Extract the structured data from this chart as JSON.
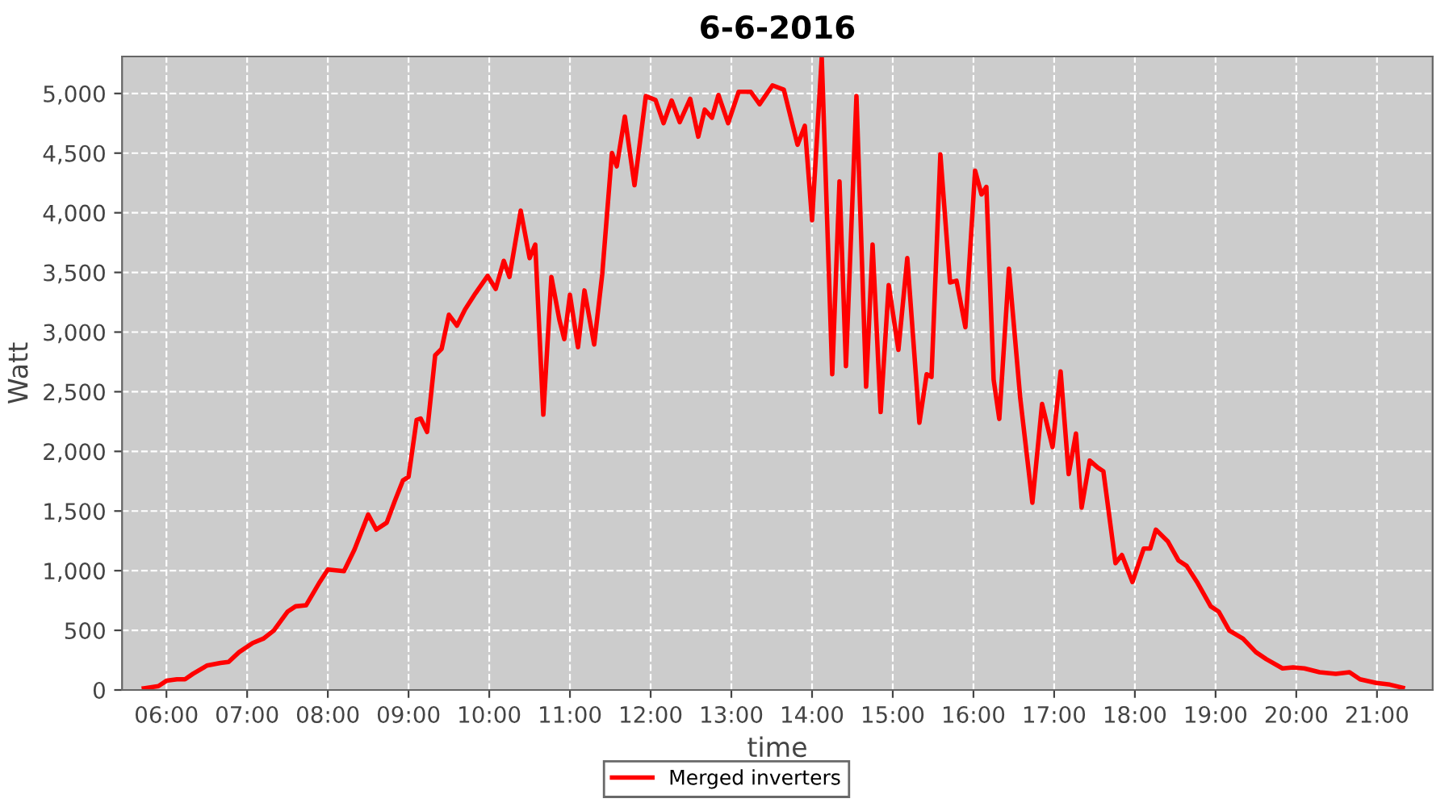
{
  "chart_data": {
    "type": "line",
    "title": "6-6-2016",
    "xlabel": "time",
    "ylabel": "Watt",
    "xlim": [
      5.45,
      21.69
    ],
    "xticks": [
      {
        "value": 6,
        "label": "06:00"
      },
      {
        "value": 7,
        "label": "07:00"
      },
      {
        "value": 8,
        "label": "08:00"
      },
      {
        "value": 9,
        "label": "09:00"
      },
      {
        "value": 10,
        "label": "10:00"
      },
      {
        "value": 11,
        "label": "11:00"
      },
      {
        "value": 12,
        "label": "12:00"
      },
      {
        "value": 13,
        "label": "13:00"
      },
      {
        "value": 14,
        "label": "14:00"
      },
      {
        "value": 15,
        "label": "15:00"
      },
      {
        "value": 16,
        "label": "16:00"
      },
      {
        "value": 17,
        "label": "17:00"
      },
      {
        "value": 18,
        "label": "18:00"
      },
      {
        "value": 19,
        "label": "19:00"
      },
      {
        "value": 20,
        "label": "20:00"
      },
      {
        "value": 21,
        "label": "21:00"
      }
    ],
    "ylim": [
      0,
      5310
    ],
    "yticks": [
      0,
      500,
      {
        "value": 1000,
        "label": "1,000"
      },
      {
        "value": 1500,
        "label": "1,500"
      },
      {
        "value": 2000,
        "label": "2,000"
      },
      {
        "value": 2500,
        "label": "2,500"
      },
      {
        "value": 3000,
        "label": "3,000"
      },
      {
        "value": 3500,
        "label": "3,500"
      },
      {
        "value": 4000,
        "label": "4,000"
      },
      {
        "value": 4500,
        "label": "4,500"
      },
      {
        "value": 5000,
        "label": "5,000"
      }
    ],
    "grid": true,
    "legend": "bottom",
    "marker": "none",
    "line_style": "solid",
    "series": [
      {
        "name": "Merged inverters",
        "color": "#ff0000",
        "x": [
          5.72,
          5.9,
          6.0,
          6.13,
          6.23,
          6.33,
          6.5,
          6.67,
          6.77,
          6.9,
          7.07,
          7.2,
          7.33,
          7.5,
          7.6,
          7.73,
          7.9,
          8.0,
          8.2,
          8.33,
          8.5,
          8.6,
          8.73,
          8.83,
          8.93,
          9.0,
          9.1,
          9.15,
          9.23,
          9.33,
          9.41,
          9.5,
          9.6,
          9.7,
          9.83,
          9.98,
          10.08,
          10.18,
          10.25,
          10.39,
          10.5,
          10.57,
          10.67,
          10.77,
          10.87,
          10.93,
          11.0,
          11.1,
          11.18,
          11.3,
          11.4,
          11.52,
          11.58,
          11.68,
          11.8,
          11.94,
          12.06,
          12.16,
          12.26,
          12.36,
          12.49,
          12.59,
          12.67,
          12.76,
          12.84,
          12.96,
          13.09,
          13.24,
          13.35,
          13.51,
          13.65,
          13.82,
          13.91,
          14.0,
          14.12,
          14.25,
          14.34,
          14.42,
          14.55,
          14.67,
          14.75,
          14.85,
          14.95,
          15.07,
          15.18,
          15.33,
          15.42,
          15.48,
          15.59,
          15.71,
          15.79,
          15.9,
          16.02,
          16.1,
          16.16,
          16.25,
          16.32,
          16.44,
          16.58,
          16.73,
          16.85,
          16.98,
          17.08,
          17.18,
          17.27,
          17.34,
          17.44,
          17.54,
          17.61,
          17.76,
          17.84,
          17.97,
          18.11,
          18.19,
          18.26,
          18.41,
          18.54,
          18.64,
          18.77,
          18.94,
          19.04,
          19.17,
          19.34,
          19.5,
          19.63,
          19.83,
          19.96,
          20.1,
          20.29,
          20.49,
          20.66,
          20.79,
          20.99,
          21.16,
          21.32
        ],
        "values": [
          14,
          32,
          77,
          90,
          90,
          136,
          204,
          226,
          235,
          317,
          394,
          430,
          498,
          656,
          701,
          710,
          905,
          1009,
          996,
          1177,
          1471,
          1344,
          1403,
          1584,
          1756,
          1787,
          2263,
          2276,
          2163,
          2806,
          2860,
          3145,
          3054,
          3190,
          3326,
          3471,
          3362,
          3597,
          3462,
          4018,
          3620,
          3733,
          2308,
          3462,
          3100,
          2941,
          3312,
          2873,
          3349,
          2896,
          3484,
          4502,
          4389,
          4806,
          4231,
          4978,
          4946,
          4751,
          4941,
          4760,
          4955,
          4638,
          4864,
          4797,
          4987,
          4751,
          5014,
          5014,
          4910,
          5068,
          5032,
          4570,
          4729,
          3937,
          5303,
          2647,
          4263,
          2715,
          4978,
          2543,
          3733,
          2330,
          3394,
          2851,
          3620,
          2240,
          2647,
          2624,
          4489,
          3416,
          3430,
          3041,
          4353,
          4154,
          4217,
          2602,
          2272,
          3530,
          2444,
          1570,
          2398,
          2036,
          2670,
          1810,
          2149,
          1529,
          1923,
          1864,
          1833,
          1063,
          1131,
          905,
          1186,
          1186,
          1344,
          1244,
          1086,
          1041,
          905,
          701,
          656,
          498,
          430,
          317,
          258,
          181,
          190,
          181,
          149,
          136,
          149,
          90,
          59,
          45,
          18
        ]
      }
    ]
  }
}
